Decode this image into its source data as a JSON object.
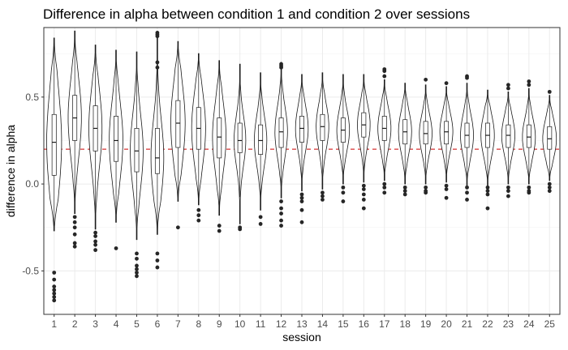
{
  "chart_data": {
    "type": "violin",
    "title": "Difference in alpha between condition 1 and condition 2 over sessions",
    "xlabel": "session",
    "ylabel": "difference in alpha",
    "ylim": [
      -0.75,
      0.9
    ],
    "yticks": [
      -0.5,
      0.0,
      0.5
    ],
    "ytick_labels": [
      "-0.5",
      "0.0",
      "0.5"
    ],
    "grid": true,
    "reference_line": {
      "y": 0.2,
      "color": "#cc0000",
      "style": "dashed"
    },
    "categories": [
      "1",
      "2",
      "3",
      "4",
      "5",
      "6",
      "7",
      "8",
      "9",
      "10",
      "11",
      "12",
      "13",
      "14",
      "15",
      "16",
      "17",
      "18",
      "19",
      "20",
      "21",
      "22",
      "23",
      "24",
      "25"
    ],
    "series": [
      {
        "session": "1",
        "min": -0.27,
        "max": 0.84,
        "q1": 0.05,
        "median": 0.24,
        "q3": 0.4,
        "outliers": [
          -0.51,
          -0.55,
          -0.59,
          -0.61,
          -0.63,
          -0.65,
          -0.67
        ]
      },
      {
        "session": "2",
        "min": -0.17,
        "max": 0.88,
        "q1": 0.25,
        "median": 0.38,
        "q3": 0.51,
        "outliers": [
          -0.19,
          -0.22,
          -0.25,
          -0.29,
          -0.34,
          -0.36
        ]
      },
      {
        "session": "3",
        "min": -0.26,
        "max": 0.8,
        "q1": 0.19,
        "median": 0.32,
        "q3": 0.45,
        "outliers": [
          -0.28,
          -0.3,
          -0.33,
          -0.35,
          -0.38
        ]
      },
      {
        "session": "4",
        "min": -0.22,
        "max": 0.77,
        "q1": 0.13,
        "median": 0.25,
        "q3": 0.39,
        "outliers": [
          -0.37
        ]
      },
      {
        "session": "5",
        "min": -0.32,
        "max": 0.76,
        "q1": 0.07,
        "median": 0.19,
        "q3": 0.32,
        "outliers": [
          -0.4,
          -0.43,
          -0.47,
          -0.49,
          -0.51,
          -0.53
        ]
      },
      {
        "session": "6",
        "min": -0.29,
        "max": 0.85,
        "q1": 0.06,
        "median": 0.15,
        "q3": 0.32,
        "outliers": [
          -0.4,
          -0.44,
          -0.48,
          0.67,
          0.7,
          0.85,
          0.86,
          0.87
        ]
      },
      {
        "session": "7",
        "min": -0.1,
        "max": 0.82,
        "q1": 0.21,
        "median": 0.35,
        "q3": 0.48,
        "outliers": [
          -0.25
        ]
      },
      {
        "session": "8",
        "min": -0.12,
        "max": 0.75,
        "q1": 0.2,
        "median": 0.32,
        "q3": 0.44,
        "outliers": [
          -0.15,
          -0.18,
          -0.21
        ]
      },
      {
        "session": "9",
        "min": -0.18,
        "max": 0.71,
        "q1": 0.15,
        "median": 0.27,
        "q3": 0.38,
        "outliers": [
          -0.24,
          -0.27
        ]
      },
      {
        "session": "10",
        "min": -0.23,
        "max": 0.69,
        "q1": 0.18,
        "median": 0.25,
        "q3": 0.35,
        "outliers": [
          -0.25,
          -0.26
        ]
      },
      {
        "session": "11",
        "min": -0.15,
        "max": 0.64,
        "q1": 0.17,
        "median": 0.25,
        "q3": 0.34,
        "outliers": [
          -0.19,
          -0.23
        ]
      },
      {
        "session": "12",
        "min": -0.08,
        "max": 0.7,
        "q1": 0.21,
        "median": 0.3,
        "q3": 0.38,
        "outliers": [
          -0.1,
          -0.14,
          -0.17,
          -0.21,
          -0.24,
          0.67,
          0.68,
          0.69
        ]
      },
      {
        "session": "13",
        "min": -0.04,
        "max": 0.63,
        "q1": 0.24,
        "median": 0.32,
        "q3": 0.39,
        "outliers": [
          -0.06,
          -0.08,
          -0.1,
          -0.15,
          -0.22
        ]
      },
      {
        "session": "14",
        "min": -0.03,
        "max": 0.64,
        "q1": 0.25,
        "median": 0.33,
        "q3": 0.4,
        "outliers": [
          -0.05,
          -0.07,
          -0.09
        ]
      },
      {
        "session": "15",
        "min": 0.0,
        "max": 0.63,
        "q1": 0.24,
        "median": 0.31,
        "q3": 0.38,
        "outliers": [
          -0.02,
          -0.05,
          -0.1
        ]
      },
      {
        "session": "16",
        "min": 0.01,
        "max": 0.63,
        "q1": 0.27,
        "median": 0.34,
        "q3": 0.41,
        "outliers": [
          -0.01,
          -0.03,
          -0.06,
          -0.09,
          -0.14
        ]
      },
      {
        "session": "17",
        "min": 0.02,
        "max": 0.6,
        "q1": 0.25,
        "median": 0.32,
        "q3": 0.39,
        "outliers": [
          0.0,
          -0.02,
          -0.05,
          0.62,
          0.65,
          0.66
        ]
      },
      {
        "session": "18",
        "min": 0.0,
        "max": 0.58,
        "q1": 0.23,
        "median": 0.3,
        "q3": 0.37,
        "outliers": [
          -0.02,
          -0.04,
          -0.06
        ]
      },
      {
        "session": "19",
        "min": 0.0,
        "max": 0.57,
        "q1": 0.23,
        "median": 0.29,
        "q3": 0.36,
        "outliers": [
          -0.02,
          -0.04,
          -0.05,
          0.6
        ]
      },
      {
        "session": "20",
        "min": 0.01,
        "max": 0.56,
        "q1": 0.23,
        "median": 0.3,
        "q3": 0.36,
        "outliers": [
          -0.01,
          -0.03,
          -0.08,
          0.58
        ]
      },
      {
        "session": "21",
        "min": -0.01,
        "max": 0.58,
        "q1": 0.21,
        "median": 0.28,
        "q3": 0.35,
        "outliers": [
          -0.02,
          -0.05,
          -0.09,
          0.61,
          0.62
        ]
      },
      {
        "session": "22",
        "min": -0.01,
        "max": 0.54,
        "q1": 0.21,
        "median": 0.28,
        "q3": 0.35,
        "outliers": [
          -0.02,
          -0.04,
          -0.06,
          -0.14
        ]
      },
      {
        "session": "23",
        "min": 0.0,
        "max": 0.53,
        "q1": 0.21,
        "median": 0.28,
        "q3": 0.34,
        "outliers": [
          -0.02,
          -0.04,
          -0.07,
          0.55,
          0.57
        ]
      },
      {
        "session": "24",
        "min": 0.0,
        "max": 0.55,
        "q1": 0.21,
        "median": 0.27,
        "q3": 0.34,
        "outliers": [
          -0.02,
          -0.04,
          -0.05,
          0.57,
          0.59
        ]
      },
      {
        "session": "25",
        "min": 0.02,
        "max": 0.51,
        "q1": 0.2,
        "median": 0.26,
        "q3": 0.33,
        "outliers": [
          0.0,
          -0.02,
          -0.04,
          0.53
        ]
      }
    ]
  }
}
